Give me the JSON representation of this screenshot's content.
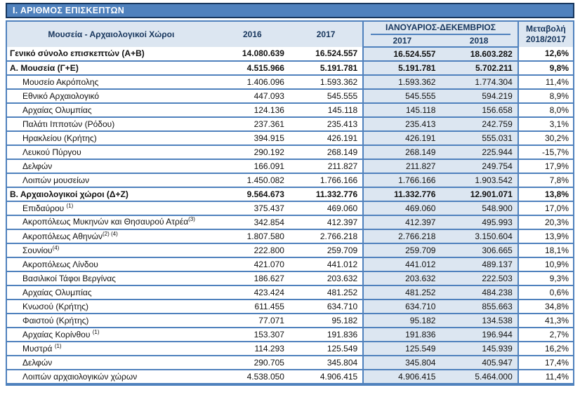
{
  "title": "Ι. ΑΡΙΘΜΟΣ  ΕΠΙΣΚΕΠΤΩΝ",
  "colors": {
    "accent_blue": "#4f81bd",
    "dark_navy": "#17365d",
    "light_blue_fill": "#dce6f1"
  },
  "table": {
    "header": {
      "col_label": "Μουσεία - Αρχαιολογικοί Χώροι",
      "col_2016": "2016",
      "col_2017": "2017",
      "span_label": "ΙΑΝΟΥΑΡΙΟΣ-ΔΕΚΕΜΒΡΙΟΣ",
      "sub_2017": "2017",
      "sub_2018": "2018",
      "col_change_line1": "Μεταβολή",
      "col_change_line2": "2018/2017"
    },
    "rows": [
      {
        "style": "total",
        "label": "Γενικό  σύνολο επισκεπτών (Α+Β)",
        "v2016": "14.080.639",
        "v2017": "16.524.557",
        "jd2017": "16.524.557",
        "jd2018": "18.603.282",
        "change": "12,6%"
      },
      {
        "style": "section",
        "label": "Α. Μουσεία (Γ+Ε)",
        "v2016": "4.515.966",
        "v2017": "5.191.781",
        "jd2017": "5.191.781",
        "jd2018": "5.702.211",
        "change": "9,8%"
      },
      {
        "style": "detail",
        "label": "Μουσείο Ακρόπολης",
        "v2016": "1.406.096",
        "v2017": "1.593.362",
        "jd2017": "1.593.362",
        "jd2018": "1.774.304",
        "change": "11,4%"
      },
      {
        "style": "detail",
        "label": "Εθνικό Αρχαιολογικό",
        "v2016": "447.093",
        "v2017": "545.555",
        "jd2017": "545.555",
        "jd2018": "594.219",
        "change": "8,9%"
      },
      {
        "style": "detail",
        "label": "Αρχαίας Ολυμπίας",
        "v2016": "124.136",
        "v2017": "145.118",
        "jd2017": "145.118",
        "jd2018": "156.658",
        "change": "8,0%"
      },
      {
        "style": "detail",
        "label": "Παλάτι Ιπποτών (Ρόδου)",
        "v2016": "237.361",
        "v2017": "235.413",
        "jd2017": "235.413",
        "jd2018": "242.759",
        "change": "3,1%"
      },
      {
        "style": "detail",
        "label": "Ηρακλείου (Κρήτης)",
        "v2016": "394.915",
        "v2017": "426.191",
        "jd2017": "426.191",
        "jd2018": "555.031",
        "change": "30,2%"
      },
      {
        "style": "detail",
        "label": "Λευκού Πύργου",
        "v2016": "290.192",
        "v2017": "268.149",
        "jd2017": "268.149",
        "jd2018": "225.944",
        "change": "-15,7%"
      },
      {
        "style": "detail",
        "label": "Δελφών",
        "v2016": "166.091",
        "v2017": "211.827",
        "jd2017": "211.827",
        "jd2018": "249.754",
        "change": "17,9%"
      },
      {
        "style": "detail",
        "label": "Λοιπών μουσείων",
        "v2016": "1.450.082",
        "v2017": "1.766.166",
        "jd2017": "1.766.166",
        "jd2018": "1.903.542",
        "change": "7,8%"
      },
      {
        "style": "section",
        "label": "Β. Αρχαιολογικοί χώροι (Δ+Ζ)",
        "v2016": "9.564.673",
        "v2017": "11.332.776",
        "jd2017": "11.332.776",
        "jd2018": "12.901.071",
        "change": "13,8%"
      },
      {
        "style": "detail",
        "label": "Επιδαύρου ",
        "sup": "(1)",
        "v2016": "375.437",
        "v2017": "469.060",
        "jd2017": "469.060",
        "jd2018": "548.900",
        "change": "17,0%"
      },
      {
        "style": "detail",
        "label": "Ακροπόλεως Μυκηνών και Θησαυρού Ατρέα",
        "sup": "(3)",
        "two_line": true,
        "v2016": "342.854",
        "v2017": "412.397",
        "jd2017": "412.397",
        "jd2018": "495.993",
        "change": "20,3%"
      },
      {
        "style": "detail",
        "label": "Ακροπόλεως Αθηνών",
        "sup": "(2) (4)",
        "v2016": "1.807.580",
        "v2017": "2.766.218",
        "jd2017": "2.766.218",
        "jd2018": "3.150.604",
        "change": "13,9%"
      },
      {
        "style": "detail",
        "label": "Σουνίου",
        "sup": "(4)",
        "v2016": "222.800",
        "v2017": "259.709",
        "jd2017": "259.709",
        "jd2018": "306.665",
        "change": "18,1%"
      },
      {
        "style": "detail",
        "label": "Ακροπόλεως Λίνδου",
        "v2016": "421.070",
        "v2017": "441.012",
        "jd2017": "441.012",
        "jd2018": "489.137",
        "change": "10,9%"
      },
      {
        "style": "detail",
        "label": "Βασιλικοί Τάφοι Βεργίνας",
        "v2016": "186.627",
        "v2017": "203.632",
        "jd2017": "203.632",
        "jd2018": "222.503",
        "change": "9,3%"
      },
      {
        "style": "detail",
        "label": "Αρχαίας Ολυμπίας",
        "v2016": "423.424",
        "v2017": "481.252",
        "jd2017": "481.252",
        "jd2018": "484.238",
        "change": "0,6%"
      },
      {
        "style": "detail",
        "label": "Κνωσού (Κρήτης)",
        "v2016": "611.455",
        "v2017": "634.710",
        "jd2017": "634.710",
        "jd2018": "855.663",
        "change": "34,8%"
      },
      {
        "style": "detail",
        "label": "Φαιστού (Κρήτης)",
        "v2016": "77.071",
        "v2017": "95.182",
        "jd2017": "95.182",
        "jd2018": "134.538",
        "change": "41,3%"
      },
      {
        "style": "detail",
        "label": "Αρχαίας Κορίνθου ",
        "sup": "(1)",
        "v2016": "153.307",
        "v2017": "191.836",
        "jd2017": "191.836",
        "jd2018": "196.944",
        "change": "2,7%"
      },
      {
        "style": "detail",
        "label": "Μυστρά ",
        "sup": "(1)",
        "v2016": "114.293",
        "v2017": "125.549",
        "jd2017": "125.549",
        "jd2018": "145.939",
        "change": "16,2%"
      },
      {
        "style": "detail",
        "label": "Δελφών",
        "v2016": "290.705",
        "v2017": "345.804",
        "jd2017": "345.804",
        "jd2018": "405.947",
        "change": "17,4%"
      },
      {
        "style": "detail",
        "label": "Λοιπών αρχαιολογικών χώρων",
        "v2016": "4.538.050",
        "v2017": "4.906.415",
        "jd2017": "4.906.415",
        "jd2018": "5.464.000",
        "change": "11,4%"
      }
    ]
  }
}
